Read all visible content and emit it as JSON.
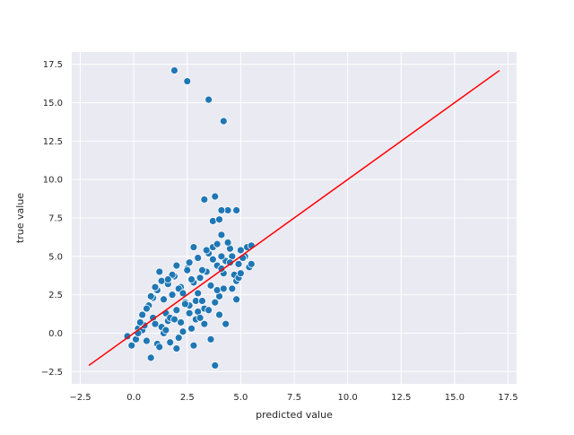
{
  "chart_data": {
    "type": "scatter",
    "title": "",
    "xlabel": "predicted value",
    "ylabel": "true value",
    "xlim": [
      -2.9,
      17.9
    ],
    "ylim": [
      -3.3,
      18.3
    ],
    "x_ticks": [
      -2.5,
      0.0,
      2.5,
      5.0,
      7.5,
      10.0,
      12.5,
      15.0,
      17.5
    ],
    "x_tick_labels": [
      "−2.5",
      "0.0",
      "2.5",
      "5.0",
      "7.5",
      "10.0",
      "12.5",
      "15.0",
      "17.5"
    ],
    "y_ticks": [
      -2.5,
      0.0,
      2.5,
      5.0,
      7.5,
      10.0,
      12.5,
      15.0,
      17.5
    ],
    "y_tick_labels": [
      "−2.5",
      "0.0",
      "2.5",
      "5.0",
      "7.5",
      "10.0",
      "12.5",
      "15.0",
      "17.5"
    ],
    "grid": true,
    "legend": "none",
    "colors": {
      "background": "#eaeaf2",
      "grid": "#ffffff",
      "points": "#1f77b4",
      "point_edge": "#ffffff",
      "line": "#ff0000"
    },
    "reference_line": {
      "x": [
        -2.1,
        17.1
      ],
      "y": [
        -2.1,
        17.1
      ]
    },
    "series": [
      {
        "x": [
          1.9,
          2.5,
          3.5,
          4.2,
          3.3,
          3.8,
          4.8,
          4.4,
          4.1,
          3.7,
          4.0,
          4.1,
          3.8,
          0.8,
          -0.3,
          -0.1,
          0.2,
          0.4,
          0.6,
          1.1,
          1.3,
          0.9,
          1.6,
          2.0,
          2.4,
          1.8,
          2.2,
          2.8,
          3.1,
          3.4,
          3.9,
          4.3,
          4.6,
          5.0,
          5.3,
          5.5,
          4.9,
          4.2,
          3.6,
          3.0,
          2.6,
          1.5,
          1.0,
          0.5,
          0.1,
          0.7,
          1.4,
          2.1,
          2.7,
          3.2,
          3.7,
          4.5,
          5.2,
          4.7,
          4.0,
          3.3,
          2.9,
          2.3,
          1.7,
          1.2,
          0.3,
          0.9,
          1.6,
          2.5,
          3.5,
          4.4,
          5.1,
          5.4,
          4.8,
          3.9,
          3.0,
          2.2,
          1.4,
          0.6,
          1.1,
          1.9,
          2.6,
          3.4,
          4.1,
          4.9,
          5.5,
          2.0,
          2.8,
          3.6,
          4.3,
          3.1,
          2.4,
          1.8,
          1.3,
          0.8,
          3.8,
          4.6,
          2.7,
          1.5,
          2.1,
          3.3,
          4.0,
          2.9,
          1.0,
          0.4,
          1.7,
          2.3,
          3.2,
          4.2,
          5.0,
          4.5,
          3.7,
          2.5,
          1.2,
          0.2,
          1.9,
          2.6,
          3.5,
          4.8,
          2.0,
          3.0,
          4.1,
          1.6,
          2.8,
          3.9
        ],
        "y": [
          17.1,
          16.4,
          15.2,
          13.8,
          8.7,
          8.9,
          8.0,
          8.0,
          8.0,
          7.3,
          7.4,
          6.4,
          -2.1,
          -1.6,
          -0.2,
          -0.8,
          0.3,
          0.2,
          -0.5,
          -0.7,
          0.4,
          1.0,
          0.8,
          1.5,
          2.0,
          2.5,
          3.0,
          3.3,
          3.6,
          4.0,
          4.4,
          4.7,
          5.0,
          5.4,
          5.6,
          5.7,
          4.5,
          3.9,
          3.1,
          2.6,
          1.8,
          1.3,
          0.6,
          0.5,
          -0.4,
          1.8,
          2.2,
          2.9,
          3.5,
          4.1,
          4.8,
          5.5,
          5.0,
          3.8,
          2.4,
          1.6,
          0.9,
          0.1,
          -0.6,
          -0.9,
          0.7,
          2.3,
          3.2,
          4.2,
          5.2,
          5.9,
          4.9,
          4.3,
          3.4,
          2.8,
          1.4,
          0.7,
          0.0,
          1.6,
          2.8,
          3.7,
          4.6,
          5.4,
          4.2,
          3.6,
          4.5,
          -1.0,
          -0.8,
          -0.4,
          0.6,
          1.0,
          1.9,
          3.8,
          3.4,
          2.4,
          2.0,
          2.9,
          0.3,
          0.2,
          -0.3,
          0.6,
          1.2,
          2.1,
          3.0,
          1.2,
          1.0,
          2.6,
          2.1,
          2.9,
          3.9,
          4.6,
          5.6,
          4.1,
          4.0,
          0.0,
          0.9,
          1.3,
          1.5,
          2.2,
          4.4,
          4.9,
          5.0,
          3.5,
          5.6,
          5.8
        ]
      }
    ]
  }
}
